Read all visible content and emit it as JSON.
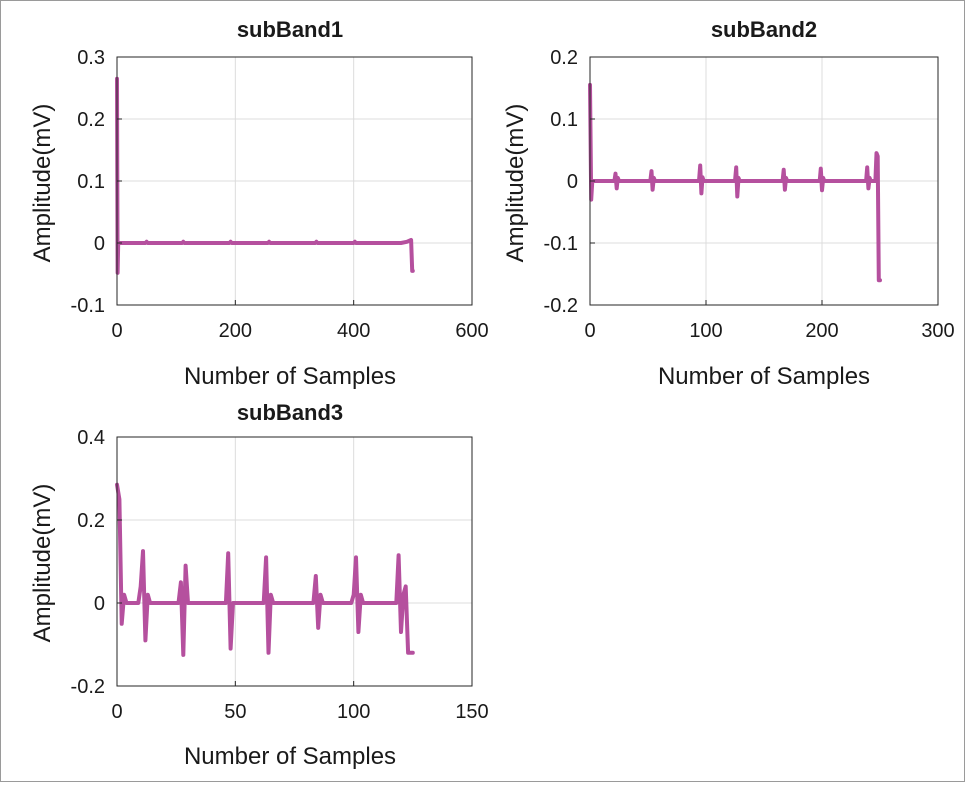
{
  "accent_color": "#b5509e",
  "chart_data": [
    {
      "type": "line",
      "title": "subBand1",
      "xlabel": "Number of Samples",
      "ylabel": "Amplitude(mV)",
      "xlim": [
        0,
        600
      ],
      "ylim": [
        -0.1,
        0.3
      ],
      "xticks": [
        "0",
        "200",
        "400",
        "600"
      ],
      "yticks": [
        "-0.1",
        "0",
        "0.1",
        "0.2",
        "0.3"
      ],
      "grid": true,
      "color": "#b5509e",
      "x": [
        0,
        1,
        2,
        3,
        5,
        10,
        48,
        50,
        52,
        110,
        112,
        114,
        190,
        192,
        194,
        255,
        257,
        259,
        335,
        337,
        339,
        400,
        402,
        404,
        480,
        490,
        497,
        499,
        500
      ],
      "y": [
        0.265,
        -0.048,
        0.0,
        0.0,
        0.0,
        0.0,
        0.0,
        0.002,
        0.0,
        0.0,
        0.002,
        0.0,
        0.0,
        0.002,
        0.0,
        0.0,
        0.002,
        0.0,
        0.0,
        0.002,
        0.0,
        0.0,
        0.002,
        0.0,
        0.0,
        0.002,
        0.005,
        -0.045,
        -0.045
      ]
    },
    {
      "type": "line",
      "title": "subBand2",
      "xlabel": "Number of Samples",
      "ylabel": "Amplitude(mV)",
      "xlim": [
        0,
        300
      ],
      "ylim": [
        -0.2,
        0.2
      ],
      "xticks": [
        "0",
        "100",
        "200",
        "300"
      ],
      "yticks": [
        "-0.2",
        "-0.1",
        "0",
        "0.1",
        "0.2"
      ],
      "grid": true,
      "color": "#b5509e",
      "x": [
        0,
        1,
        2,
        3,
        5,
        21,
        22,
        23,
        24,
        25,
        52,
        53,
        54,
        55,
        56,
        94,
        95,
        96,
        97,
        98,
        125,
        126,
        127,
        128,
        129,
        166,
        167,
        168,
        169,
        170,
        198,
        199,
        200,
        201,
        202,
        238,
        239,
        240,
        241,
        242,
        246,
        247,
        248,
        249,
        250
      ],
      "y": [
        0.155,
        -0.03,
        0.0,
        0.0,
        0.0,
        0.0,
        0.012,
        -0.012,
        0.005,
        0.0,
        0.0,
        0.016,
        -0.014,
        0.005,
        0.0,
        0.0,
        0.025,
        -0.02,
        0.006,
        0.0,
        0.0,
        0.022,
        -0.025,
        0.005,
        0.0,
        0.0,
        0.018,
        -0.014,
        0.005,
        0.0,
        0.0,
        0.02,
        -0.015,
        0.005,
        0.0,
        0.0,
        0.022,
        -0.012,
        0.005,
        0.0,
        0.0,
        0.045,
        0.04,
        -0.16,
        -0.16
      ]
    },
    {
      "type": "line",
      "title": "subBand3",
      "xlabel": "Number of Samples",
      "ylabel": "Amplitude(mV)",
      "xlim": [
        0,
        150
      ],
      "ylim": [
        -0.2,
        0.4
      ],
      "xticks": [
        "0",
        "50",
        "100",
        "150"
      ],
      "yticks": [
        "-0.2",
        "0",
        "0.2",
        "0.4"
      ],
      "grid": true,
      "color": "#b5509e",
      "x": [
        0,
        1,
        2,
        3,
        4,
        9,
        10,
        11,
        12,
        13,
        14,
        26,
        27,
        28,
        29,
        30,
        31,
        46,
        47,
        48,
        49,
        50,
        62,
        63,
        64,
        65,
        66,
        67,
        83,
        84,
        85,
        86,
        87,
        99,
        100,
        101,
        102,
        103,
        104,
        118,
        119,
        120,
        121,
        122,
        123,
        124,
        125
      ],
      "y": [
        0.285,
        0.25,
        -0.05,
        0.02,
        0.0,
        0.0,
        0.04,
        0.125,
        -0.09,
        0.02,
        0.0,
        0.0,
        0.05,
        -0.125,
        0.09,
        0.0,
        0.0,
        0.0,
        0.12,
        -0.11,
        0.0,
        0.0,
        0.0,
        0.11,
        -0.12,
        0.02,
        0.0,
        0.0,
        0.0,
        0.065,
        -0.06,
        0.02,
        0.0,
        0.0,
        0.02,
        0.11,
        -0.07,
        0.02,
        0.0,
        0.0,
        0.115,
        -0.07,
        0.02,
        0.04,
        -0.12,
        -0.12,
        -0.12
      ]
    }
  ]
}
